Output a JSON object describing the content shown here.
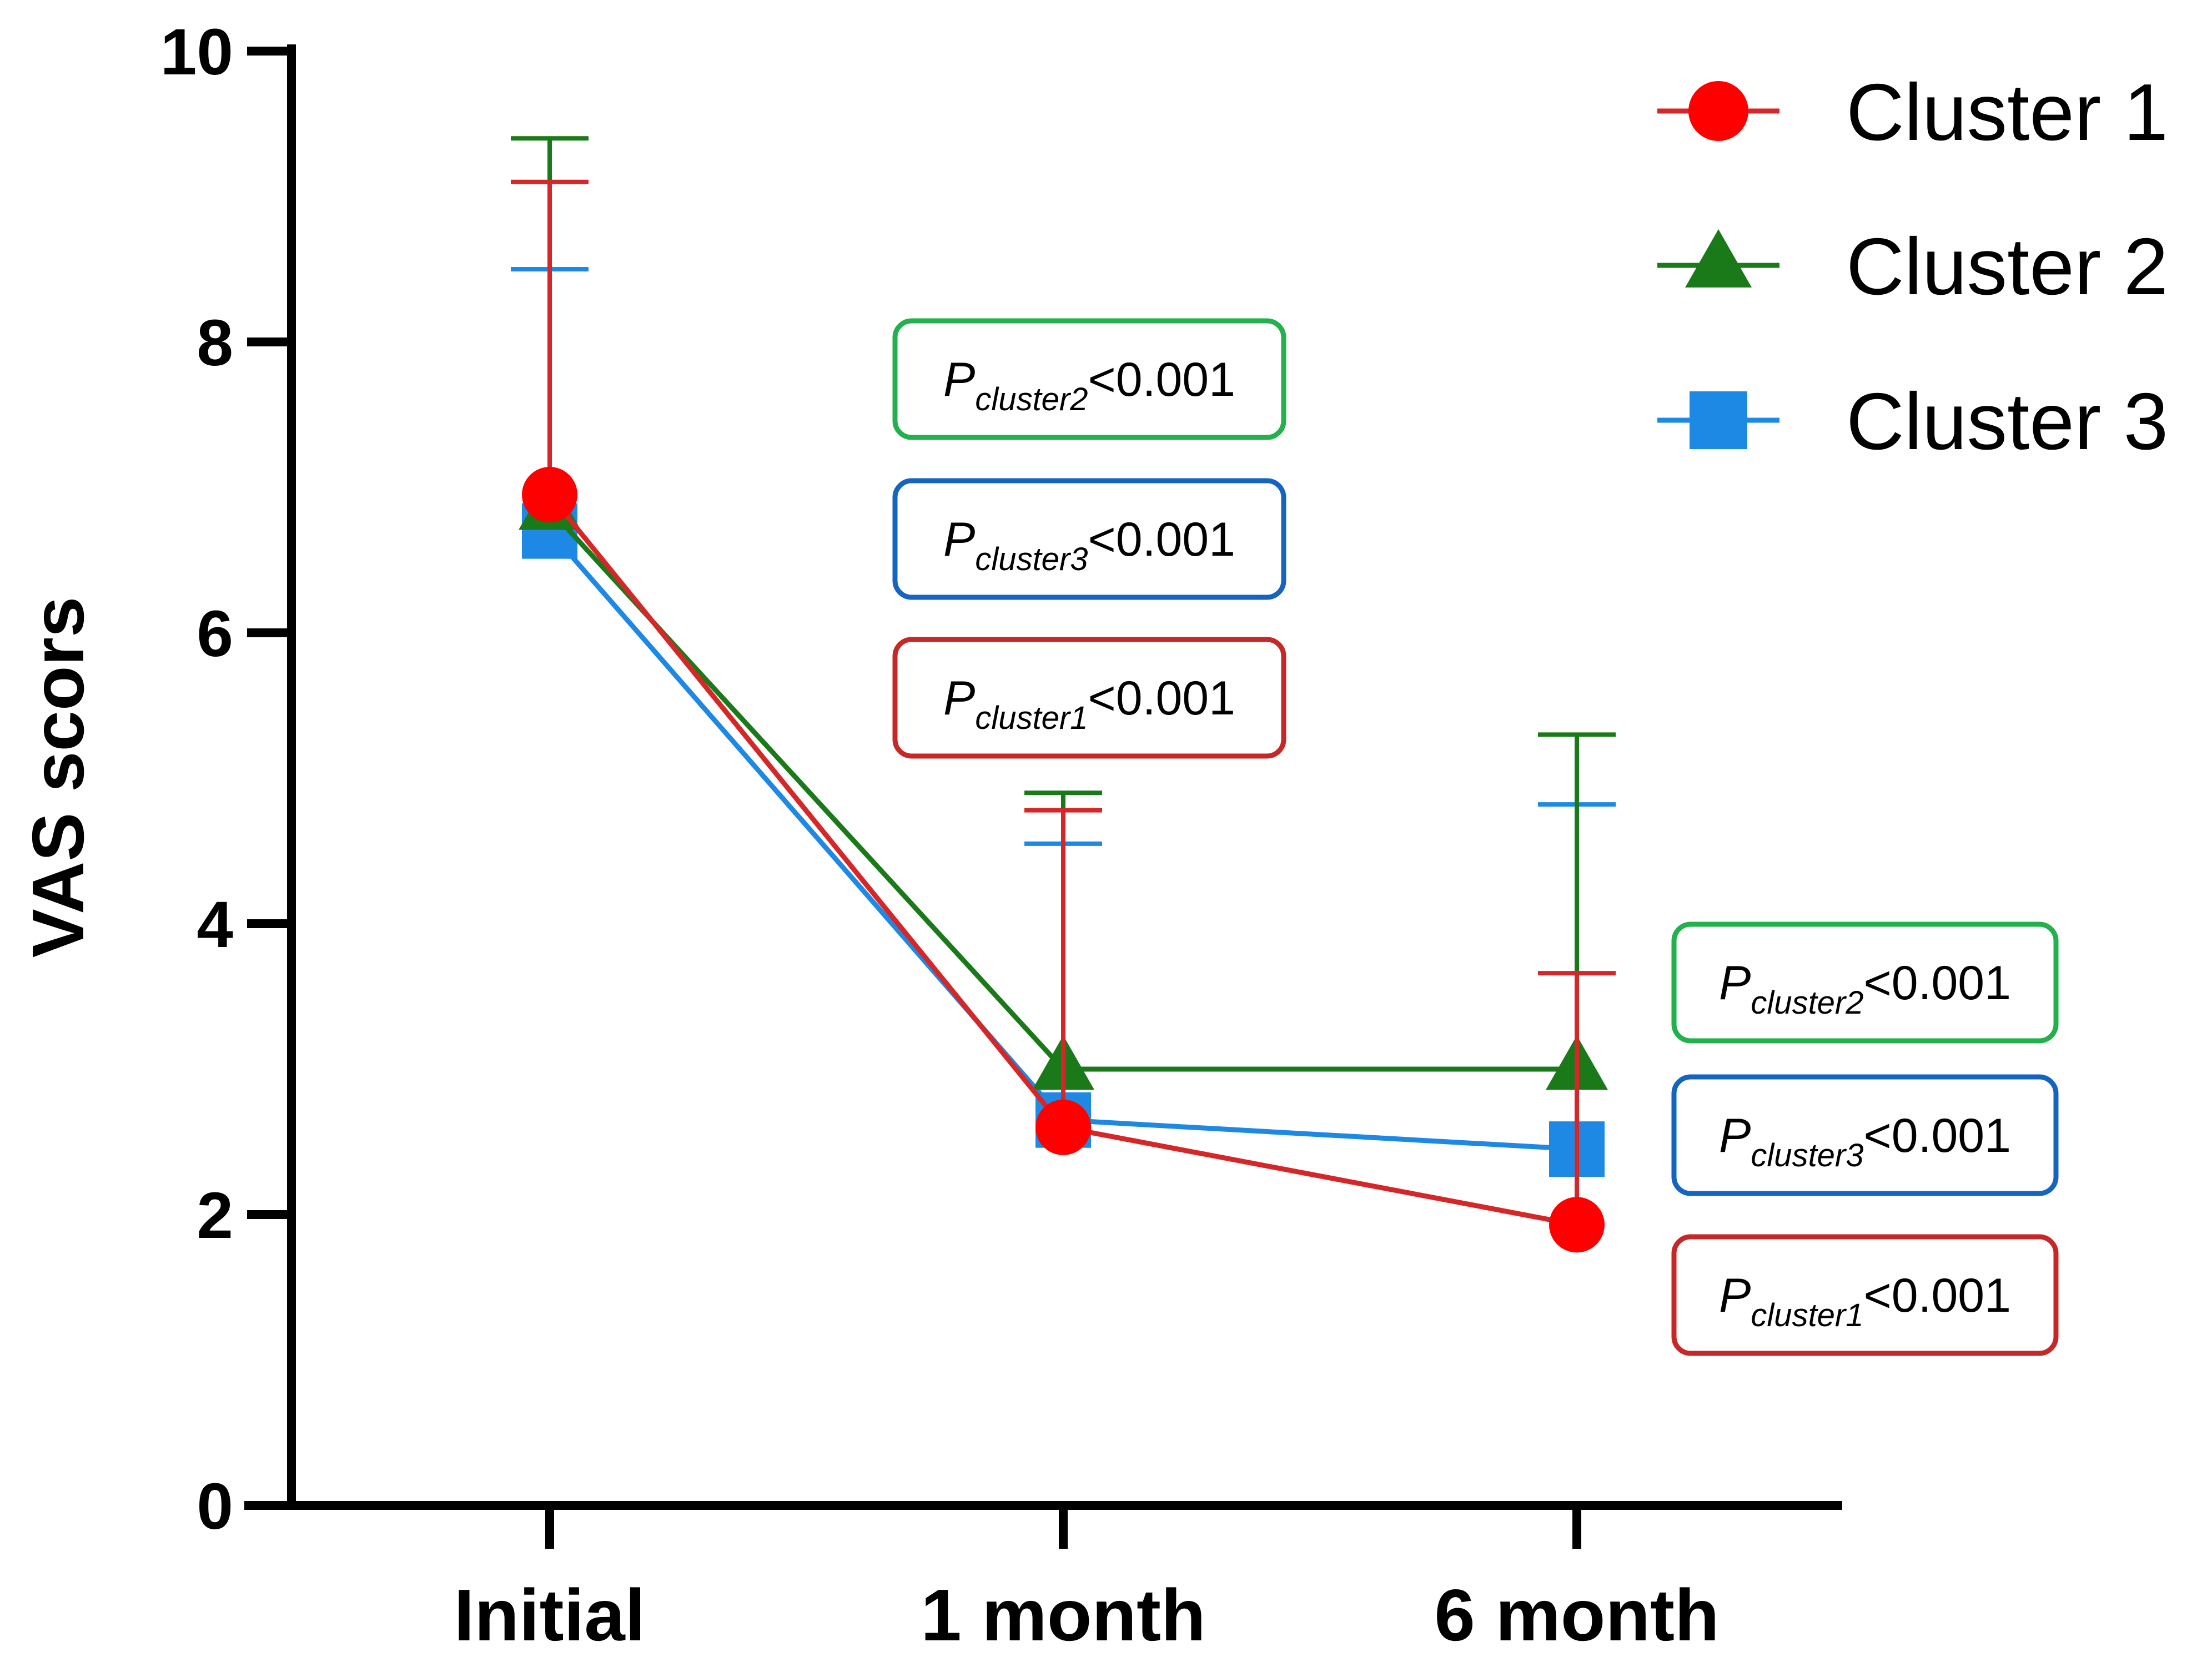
{
  "chart_data": {
    "type": "line",
    "title": "",
    "xlabel": "",
    "ylabel": "VAS scors",
    "categories": [
      "Initial",
      "1 month",
      "6 month"
    ],
    "yticks": [
      "0",
      "2",
      "4",
      "6",
      "8",
      "10"
    ],
    "ylim": [
      0,
      10
    ],
    "grid": false,
    "legend": "top-right",
    "series": [
      {
        "name": "Cluster 1",
        "marker": "circle",
        "color": "#ff0000",
        "line_color": "#d62728",
        "values": [
          6.95,
          2.6,
          1.93
        ],
        "error_upper": [
          9.1,
          4.78,
          3.66
        ]
      },
      {
        "name": "Cluster 2",
        "marker": "triangle",
        "color": "#1a7a1a",
        "line_color": "#1a7a1a",
        "values": [
          6.85,
          3.0,
          3.0
        ],
        "error_upper": [
          9.4,
          4.9,
          5.3
        ]
      },
      {
        "name": "Cluster 3",
        "marker": "square",
        "color": "#1e88e5",
        "line_color": "#1e88e5",
        "values": [
          6.7,
          2.65,
          2.45
        ],
        "error_upper": [
          8.5,
          4.55,
          4.82
        ]
      }
    ],
    "annotations": [
      {
        "group": "1 month",
        "series": "Cluster 2",
        "p": "P",
        "sub": "cluster2",
        "text": "<0.001",
        "color": "#22b14c"
      },
      {
        "group": "1 month",
        "series": "Cluster 3",
        "p": "P",
        "sub": "cluster3",
        "text": "<0.001",
        "color": "#1565c0"
      },
      {
        "group": "1 month",
        "series": "Cluster 1",
        "p": "P",
        "sub": "cluster1",
        "text": "<0.001",
        "color": "#c62828"
      },
      {
        "group": "6 month",
        "series": "Cluster 2",
        "p": "P",
        "sub": "cluster2",
        "text": "<0.001",
        "color": "#22b14c"
      },
      {
        "group": "6 month",
        "series": "Cluster 3",
        "p": "P",
        "sub": "cluster3",
        "text": "<0.001",
        "color": "#1565c0"
      },
      {
        "group": "6 month",
        "series": "Cluster 1",
        "p": "P",
        "sub": "cluster1",
        "text": "<0.001",
        "color": "#c62828"
      }
    ]
  }
}
